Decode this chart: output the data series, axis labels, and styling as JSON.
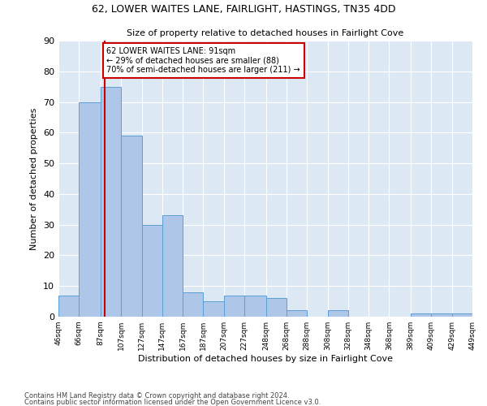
{
  "title1": "62, LOWER WAITES LANE, FAIRLIGHT, HASTINGS, TN35 4DD",
  "title2": "Size of property relative to detached houses in Fairlight Cove",
  "xlabel": "Distribution of detached houses by size in Fairlight Cove",
  "ylabel": "Number of detached properties",
  "footnote1": "Contains HM Land Registry data © Crown copyright and database right 2024.",
  "footnote2": "Contains public sector information licensed under the Open Government Licence v3.0.",
  "bins": [
    "46sqm",
    "66sqm",
    "87sqm",
    "107sqm",
    "127sqm",
    "147sqm",
    "167sqm",
    "187sqm",
    "207sqm",
    "227sqm",
    "248sqm",
    "268sqm",
    "288sqm",
    "308sqm",
    "328sqm",
    "348sqm",
    "368sqm",
    "389sqm",
    "409sqm",
    "429sqm",
    "449sqm"
  ],
  "bar_heights": [
    7,
    70,
    75,
    59,
    30,
    33,
    8,
    5,
    7,
    7,
    6,
    2,
    0,
    2,
    0,
    0,
    0,
    1,
    1,
    1
  ],
  "bar_color": "#aec6e8",
  "bar_edge_color": "#5a9fd4",
  "property_line_x": 91,
  "property_line_color": "#cc0000",
  "annotation_line1": "62 LOWER WAITES LANE: 91sqm",
  "annotation_line2": "← 29% of detached houses are smaller (88)",
  "annotation_line3": "70% of semi-detached houses are larger (211) →",
  "annotation_box_color": "#cc0000",
  "ylim": [
    0,
    90
  ],
  "yticks": [
    0,
    10,
    20,
    30,
    40,
    50,
    60,
    70,
    80,
    90
  ],
  "background_color": "#dde8f5",
  "bin_edges": [
    46,
    66,
    87,
    107,
    127,
    147,
    167,
    187,
    207,
    227,
    248,
    268,
    288,
    308,
    328,
    348,
    368,
    389,
    409,
    429,
    449
  ]
}
